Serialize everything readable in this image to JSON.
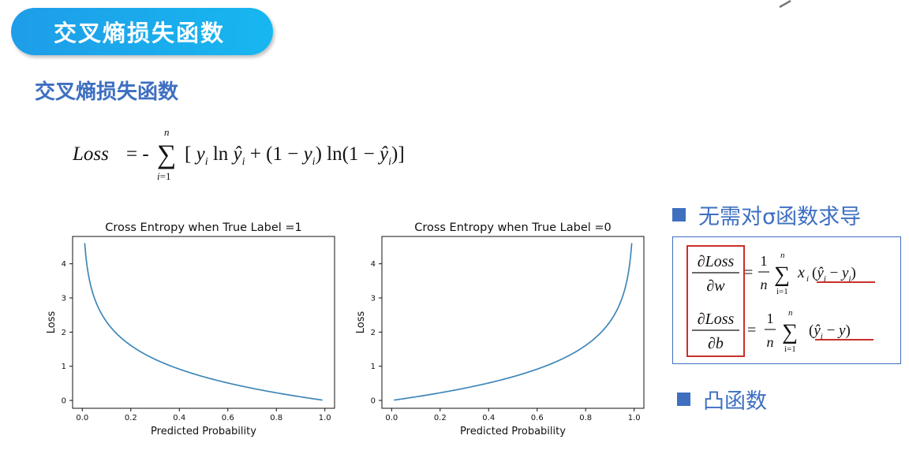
{
  "header": {
    "banner_title": "交叉熵损失函数"
  },
  "section": {
    "subtitle": "交叉熵损失函数"
  },
  "formula": {
    "loss": "Loss",
    "eq": "= -",
    "sum_top": "n",
    "sum_bottom": "i=1",
    "body": "[ y_i ln ŷ_i + (1 − y_i) ln(1 − ŷ_i) ]"
  },
  "bullets": {
    "no_derivative": "无需对σ函数求导",
    "convex": "凸函数"
  },
  "derivatives": {
    "w": {
      "numerator": "∂Loss",
      "denominator": "∂w",
      "frac_num": "1",
      "frac_den": "n",
      "sum_top": "n",
      "sum_bottom": "i=1",
      "factor": "x",
      "factor_sub": "i",
      "term": "(ŷ_i − y_i)"
    },
    "b": {
      "numerator": "∂Loss",
      "denominator": "∂b",
      "frac_num": "1",
      "frac_den": "n",
      "sum_top": "n",
      "sum_bottom": "i=1",
      "term": "(ŷ_i − y)"
    }
  },
  "chart_data": [
    {
      "type": "line",
      "title": "Cross Entropy when True Label =1",
      "xlabel": "Predicted Probability",
      "ylabel": "Loss",
      "xlim": [
        -0.04,
        1.04
      ],
      "ylim": [
        -0.23,
        4.8
      ],
      "xticks": [
        0.0,
        0.2,
        0.4,
        0.6,
        0.8,
        1.0
      ],
      "xtick_labels": [
        "0.0",
        "0.2",
        "0.4",
        "0.6",
        "0.8",
        "1.0"
      ],
      "yticks": [
        0,
        1,
        2,
        3,
        4
      ],
      "ytick_labels": [
        "0",
        "1",
        "2",
        "3",
        "4"
      ],
      "grid": false,
      "series": [
        {
          "color": "#3f87b8",
          "function": "-ln(p)",
          "x_range": [
            0.01,
            0.99
          ]
        }
      ]
    },
    {
      "type": "line",
      "title": "Cross Entropy when True Label =0",
      "xlabel": "Predicted Probability",
      "ylabel": "Loss",
      "xlim": [
        -0.04,
        1.04
      ],
      "ylim": [
        -0.23,
        4.8
      ],
      "xticks": [
        0.0,
        0.2,
        0.4,
        0.6,
        0.8,
        1.0
      ],
      "xtick_labels": [
        "0.0",
        "0.2",
        "0.4",
        "0.6",
        "0.8",
        "1.0"
      ],
      "yticks": [
        0,
        1,
        2,
        3,
        4
      ],
      "ytick_labels": [
        "0",
        "1",
        "2",
        "3",
        "4"
      ],
      "grid": false,
      "series": [
        {
          "color": "#3f87b8",
          "function": "-ln(1-p)",
          "x_range": [
            0.01,
            0.99
          ]
        }
      ]
    }
  ]
}
